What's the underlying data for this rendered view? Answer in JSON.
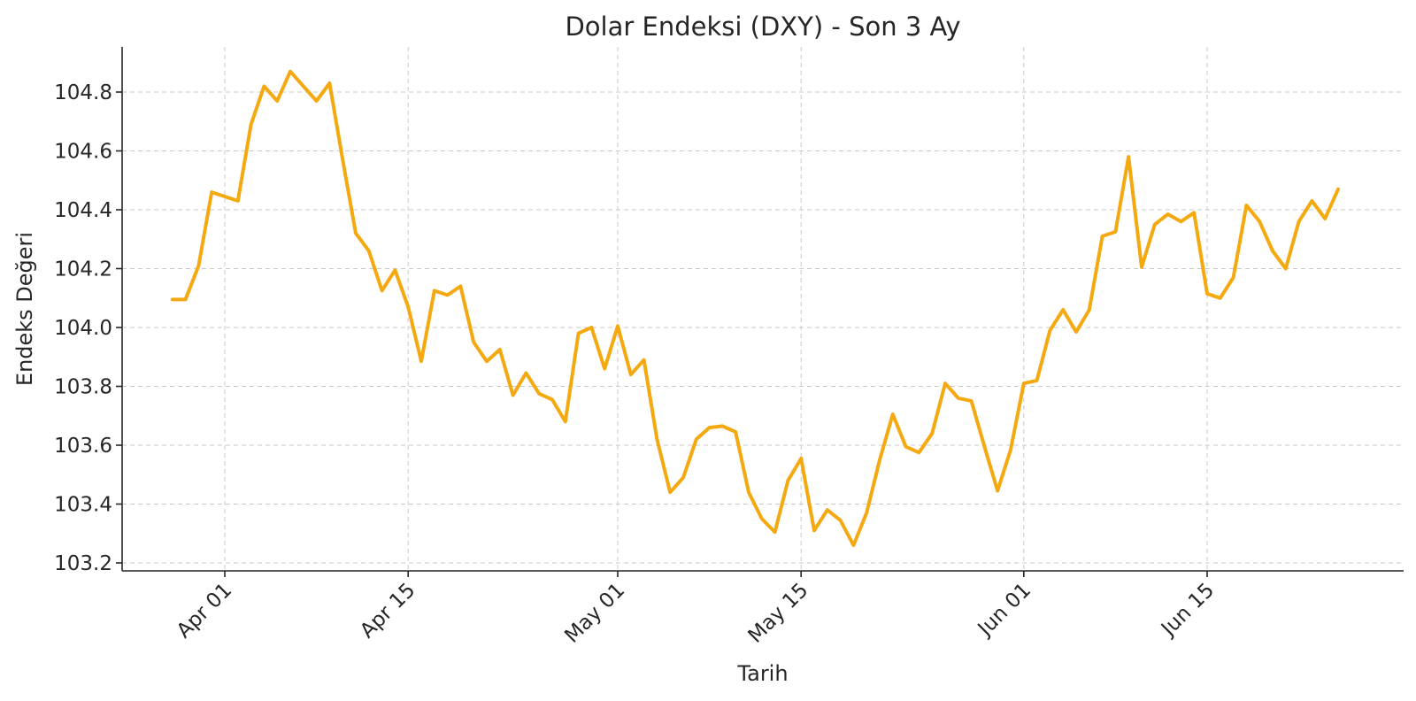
{
  "chart_data": {
    "type": "line",
    "title": "Dolar Endeksi (DXY) - Son 3 Ay",
    "xlabel": "Tarih",
    "ylabel": "Endeks Değeri",
    "x_range": [
      "2024-03-29",
      "2024-06-26"
    ],
    "ylim": [
      103.2,
      104.95
    ],
    "grid": true,
    "line_color": "#F5A910",
    "x_ticks": [
      {
        "date": "2024-04-01",
        "label": "Apr 01"
      },
      {
        "date": "2024-04-15",
        "label": "Apr 15"
      },
      {
        "date": "2024-05-01",
        "label": "May 01"
      },
      {
        "date": "2024-05-15",
        "label": "May 15"
      },
      {
        "date": "2024-06-01",
        "label": "Jun 01"
      },
      {
        "date": "2024-06-15",
        "label": "Jun 15"
      }
    ],
    "y_ticks": [
      {
        "value": 103.2,
        "label": "103.2"
      },
      {
        "value": 103.4,
        "label": "103.4"
      },
      {
        "value": 103.6,
        "label": "103.6"
      },
      {
        "value": 103.8,
        "label": "103.8"
      },
      {
        "value": 104.0,
        "label": "104.0"
      },
      {
        "value": 104.2,
        "label": "104.2"
      },
      {
        "value": 104.4,
        "label": "104.4"
      },
      {
        "value": 104.6,
        "label": "104.6"
      },
      {
        "value": 104.8,
        "label": "104.8"
      }
    ],
    "series": [
      {
        "x": [
          "2024-03-28",
          "2024-03-29",
          "2024-03-30",
          "2024-03-31",
          "2024-04-01",
          "2024-04-02",
          "2024-04-03",
          "2024-04-04",
          "2024-04-05",
          "2024-04-06",
          "2024-04-07",
          "2024-04-08",
          "2024-04-09",
          "2024-04-10",
          "2024-04-11",
          "2024-04-12",
          "2024-04-13",
          "2024-04-14",
          "2024-04-15",
          "2024-04-16",
          "2024-04-17",
          "2024-04-18",
          "2024-04-19",
          "2024-04-20",
          "2024-04-21",
          "2024-04-22",
          "2024-04-23",
          "2024-04-24",
          "2024-04-25",
          "2024-04-26",
          "2024-04-27",
          "2024-04-28",
          "2024-04-29",
          "2024-04-30",
          "2024-05-01",
          "2024-05-02",
          "2024-05-03",
          "2024-05-04",
          "2024-05-05",
          "2024-05-06",
          "2024-05-07",
          "2024-05-08",
          "2024-05-09",
          "2024-05-10",
          "2024-05-11",
          "2024-05-12",
          "2024-05-13",
          "2024-05-14",
          "2024-05-15",
          "2024-05-16",
          "2024-05-17",
          "2024-05-18",
          "2024-05-19",
          "2024-05-20",
          "2024-05-21",
          "2024-05-22",
          "2024-05-23",
          "2024-05-24",
          "2024-05-25",
          "2024-05-26",
          "2024-05-27",
          "2024-05-28",
          "2024-05-29",
          "2024-05-30",
          "2024-05-31",
          "2024-06-01",
          "2024-06-02",
          "2024-06-03",
          "2024-06-04",
          "2024-06-05",
          "2024-06-06",
          "2024-06-07",
          "2024-06-08",
          "2024-06-09",
          "2024-06-10",
          "2024-06-11",
          "2024-06-12",
          "2024-06-13",
          "2024-06-14",
          "2024-06-15",
          "2024-06-16",
          "2024-06-17",
          "2024-06-18",
          "2024-06-19",
          "2024-06-20",
          "2024-06-21",
          "2024-06-22",
          "2024-06-23",
          "2024-06-24",
          "2024-06-25"
        ],
        "values": [
          104.095,
          104.095,
          104.21,
          104.46,
          104.445,
          104.43,
          104.69,
          104.82,
          104.77,
          104.87,
          104.82,
          104.77,
          104.83,
          104.57,
          104.32,
          104.26,
          104.125,
          104.195,
          104.07,
          103.885,
          104.125,
          104.11,
          104.14,
          103.95,
          103.885,
          103.925,
          103.77,
          103.845,
          103.775,
          103.755,
          103.68,
          103.98,
          104.0,
          103.86,
          104.005,
          103.84,
          103.89,
          103.62,
          103.44,
          103.49,
          103.62,
          103.66,
          103.665,
          103.645,
          103.44,
          103.35,
          103.305,
          103.48,
          103.555,
          103.31,
          103.38,
          103.345,
          103.26,
          103.37,
          103.55,
          103.705,
          103.595,
          103.575,
          103.64,
          103.81,
          103.76,
          103.75,
          103.595,
          103.445,
          103.585,
          103.81,
          103.82,
          103.99,
          104.06,
          103.985,
          104.06,
          104.31,
          104.325,
          104.58,
          104.205,
          104.35,
          104.385,
          104.36,
          104.39,
          104.115,
          104.1,
          104.17,
          104.415,
          104.36,
          104.26,
          104.2,
          104.36,
          104.43,
          104.37,
          104.47
        ]
      }
    ]
  }
}
